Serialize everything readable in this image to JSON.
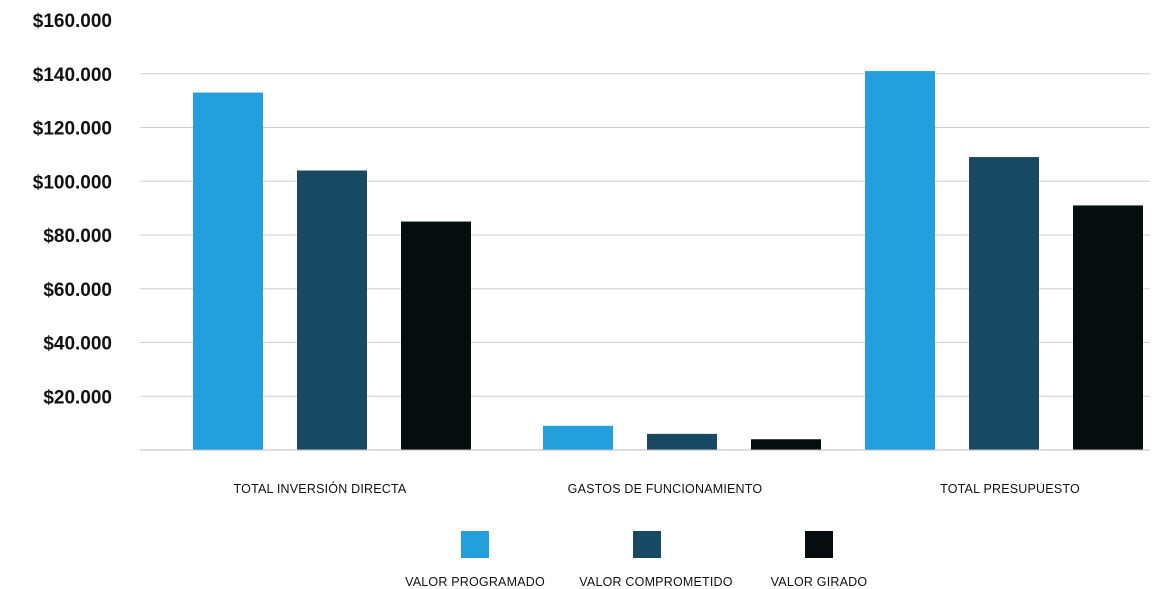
{
  "chart_data": {
    "type": "bar",
    "title": "",
    "xlabel": "",
    "ylabel": "",
    "categories": [
      "TOTAL INVERSIÓN DIRECTA",
      "GASTOS DE FUNCIONAMIENTO",
      "TOTAL PRESUPUESTO"
    ],
    "series": [
      {
        "name": "VALOR PROGRAMADO",
        "color": "#239fdc",
        "values": [
          133000,
          9000,
          141000
        ]
      },
      {
        "name": "VALOR COMPROMETIDO",
        "color": "#174a62",
        "values": [
          104000,
          6000,
          109000
        ]
      },
      {
        "name": "VALOR GIRADO",
        "color": "#050d0f",
        "values": [
          85000,
          4000,
          91000
        ]
      }
    ],
    "y_ticks": [
      {
        "value": 20000,
        "label": "$20.000"
      },
      {
        "value": 40000,
        "label": "$40.000"
      },
      {
        "value": 60000,
        "label": "$60.000"
      },
      {
        "value": 80000,
        "label": "$80.000"
      },
      {
        "value": 100000,
        "label": "$100.000"
      },
      {
        "value": 120000,
        "label": "$120.000"
      },
      {
        "value": 140000,
        "label": "$140.000"
      },
      {
        "value": 160000,
        "label": "$160.000"
      }
    ],
    "ylim": [
      0,
      160000
    ],
    "grid": true,
    "legend_position": "bottom-center"
  }
}
